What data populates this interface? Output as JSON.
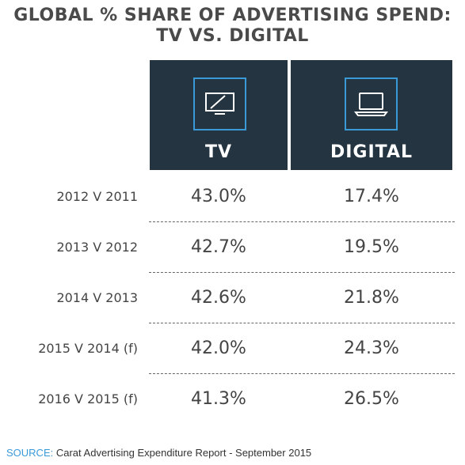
{
  "title_line1": "GLOBAL % SHARE OF ADVERTISING SPEND:",
  "title_line2": "TV VS. DIGITAL",
  "columns": [
    {
      "label": "TV",
      "icon": "tv-icon"
    },
    {
      "label": "DIGITAL",
      "icon": "laptop-icon"
    }
  ],
  "colors": {
    "header_bg": "#243441",
    "icon_accent": "#3a9ad8",
    "source_key": "#3a9ad8",
    "text": "#444444"
  },
  "rows": [
    {
      "label": "2012 V 2011",
      "tv": "43.0%",
      "digital": "17.4%"
    },
    {
      "label": "2013 V 2012",
      "tv": "42.7%",
      "digital": "19.5%"
    },
    {
      "label": "2014 V 2013",
      "tv": "42.6%",
      "digital": "21.8%"
    },
    {
      "label": "2015 V 2014 (f)",
      "tv": "42.0%",
      "digital": "24.3%"
    },
    {
      "label": "2016 V 2015 (f)",
      "tv": "41.3%",
      "digital": "26.5%"
    }
  ],
  "source_key": "SOURCE:",
  "source_text": "Carat Advertising Expenditure Report - September 2015",
  "chart_data": {
    "type": "table",
    "title": "GLOBAL % SHARE OF ADVERTISING SPEND: TV VS. DIGITAL",
    "columns": [
      "TV",
      "DIGITAL"
    ],
    "categories": [
      "2012 V 2011",
      "2013 V 2012",
      "2014 V 2013",
      "2015 V 2014 (f)",
      "2016 V 2015 (f)"
    ],
    "series": [
      {
        "name": "TV",
        "values": [
          43.0,
          42.7,
          42.6,
          42.0,
          41.3
        ]
      },
      {
        "name": "DIGITAL",
        "values": [
          17.4,
          19.5,
          21.8,
          24.3,
          26.5
        ]
      }
    ],
    "unit": "%"
  }
}
